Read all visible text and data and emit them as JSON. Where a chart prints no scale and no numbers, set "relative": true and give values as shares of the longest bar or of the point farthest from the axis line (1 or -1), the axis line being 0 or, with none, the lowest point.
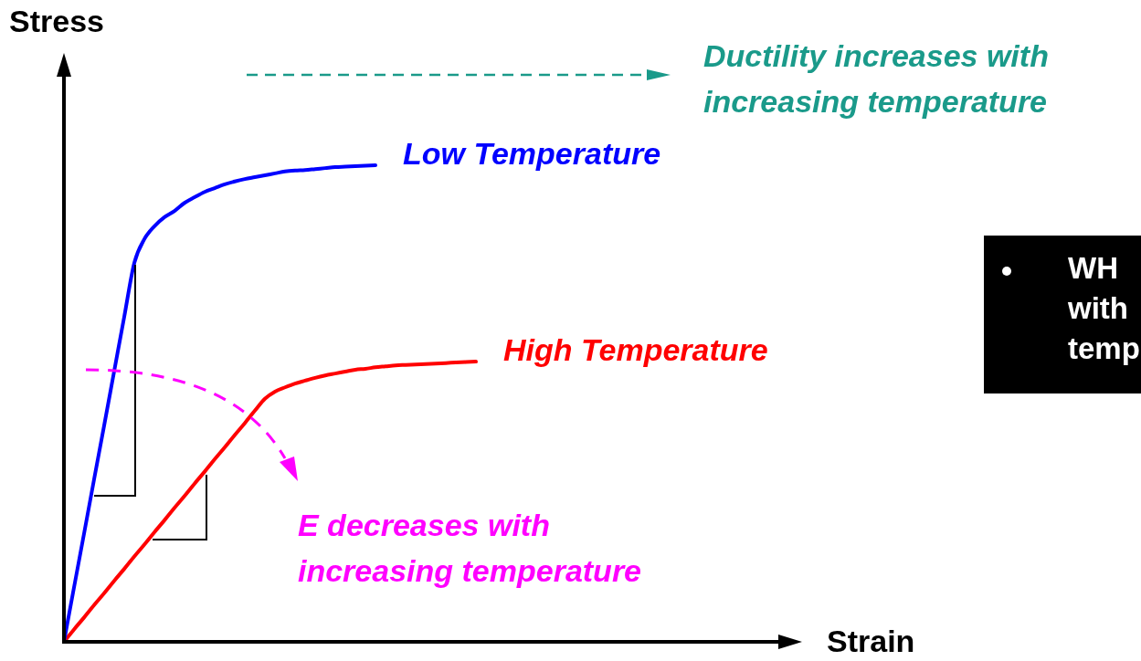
{
  "chart_data": {
    "type": "line",
    "relative": true,
    "ylabel": "Stress",
    "categories": [
      null,
      null,
      null,
      null,
      null,
      null,
      null,
      null,
      null,
      null,
      null,
      null,
      null,
      null,
      null,
      null,
      null,
      null,
      null,
      null,
      null,
      null,
      null,
      null,
      null,
      null,
      null,
      null,
      null,
      null,
      null,
      null,
      null,
      null,
      null,
      null,
      null,
      null,
      null,
      null,
      null,
      null
    ],
    "series": [
      {
        "name": "Low Temperature",
        "color": "#0000ff",
        "values": [
          0,
          0.114,
          0.227,
          0.341,
          0.454,
          0.568,
          0.682,
          0.795,
          0.845,
          0.872,
          0.891,
          0.904,
          0.921,
          0.933,
          0.944,
          0.952,
          0.96,
          0.966,
          0.971,
          0.975,
          0.979,
          0.983,
          0.987,
          0.989,
          0.99,
          0.992,
          0.994,
          0.996,
          0.997,
          0.998,
          0.999,
          1,
          null,
          null,
          null,
          null,
          null,
          null,
          null,
          null,
          null,
          null
        ]
      },
      {
        "name": "High Temperature",
        "color": "#ff0000",
        "values": [
          0,
          0.026,
          0.051,
          0.077,
          0.102,
          0.128,
          0.153,
          0.179,
          0.204,
          0.23,
          0.255,
          0.281,
          0.306,
          0.332,
          0.357,
          0.383,
          0.408,
          0.434,
          0.459,
          0.485,
          0.51,
          0.525,
          0.534,
          0.542,
          0.548,
          0.554,
          0.559,
          0.563,
          0.567,
          0.571,
          0.573,
          0.576,
          0.578,
          0.58,
          0.581,
          0.582,
          0.583,
          0.584,
          0.585,
          0.586,
          0.587,
          0.588
        ]
      }
    ],
    "annotations": [
      "Ductility increases with increasing temperature",
      "E decreases with increasing temperature",
      "WH with temp",
      "Strain"
    ],
    "marker": "none",
    "line_style": "solid",
    "legend": false
  }
}
